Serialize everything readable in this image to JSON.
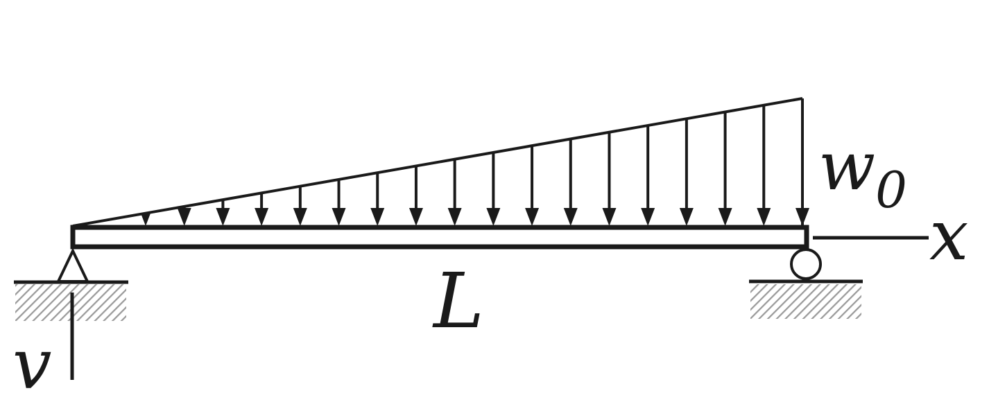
{
  "diagram": {
    "load_label": "w",
    "load_subscript": "0",
    "span_label": "L",
    "x_axis_label": "x",
    "v_axis_label": "v",
    "load_arrow_count": 18,
    "colors": {
      "ink": "#1a1a1a",
      "hatch": "#9a9a9a",
      "background": "#ffffff"
    }
  }
}
